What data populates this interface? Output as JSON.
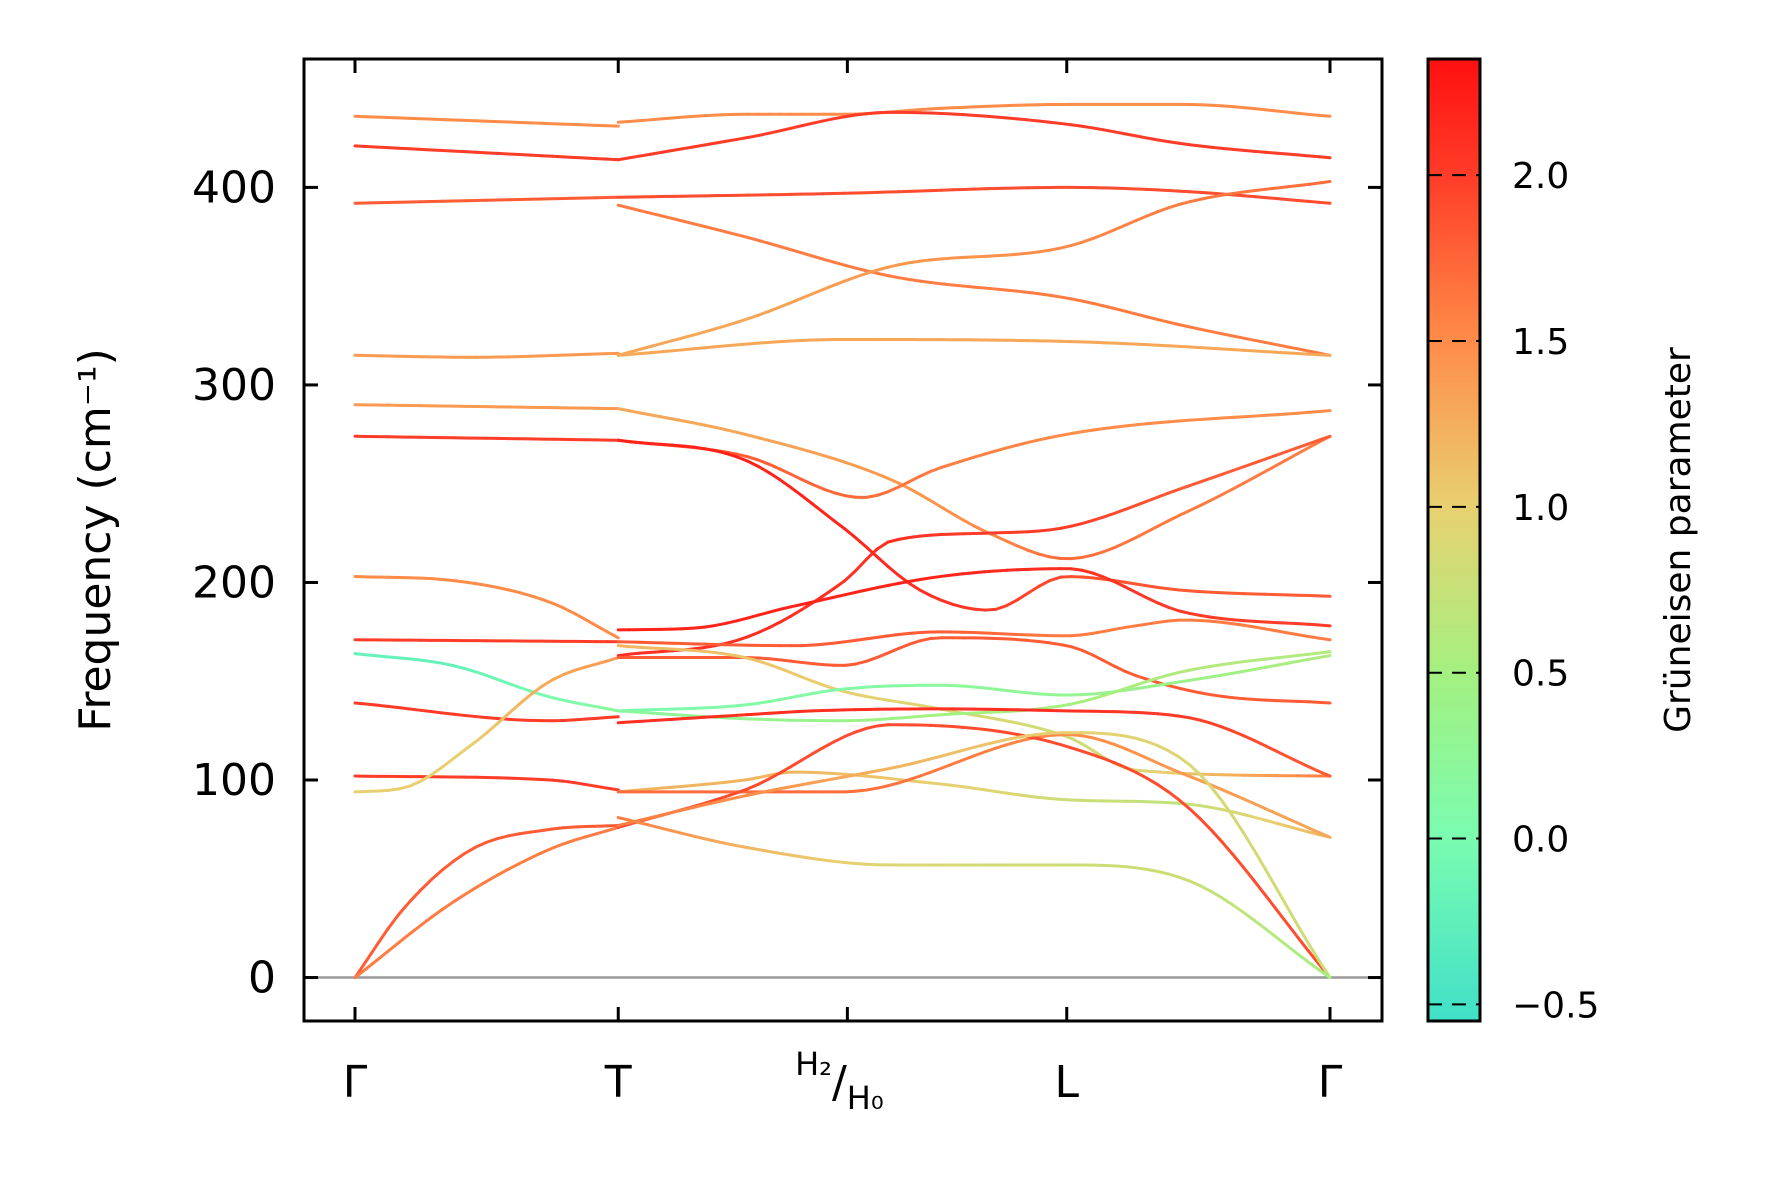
{
  "chart_data": {
    "type": "line",
    "title": "",
    "xlabel": "",
    "ylabel": "Frequency (cm⁻¹)",
    "ylim": [
      -22,
      465
    ],
    "yticks": [
      0,
      100,
      200,
      300,
      400
    ],
    "yticklabels": [
      "0",
      "100",
      "200",
      "300",
      "400"
    ],
    "kpath": [
      {
        "label": "Γ",
        "pos": 0.0
      },
      {
        "label": "T",
        "pos": 0.27
      },
      {
        "label": "H2/H0",
        "pos": 0.505,
        "sup": "H₂",
        "sub": "H₀"
      },
      {
        "label": "L",
        "pos": 0.73
      },
      {
        "label": "Γ",
        "pos": 1.0
      }
    ],
    "zero_line": 0,
    "colorbar": {
      "label": "Grüneisen parameter",
      "min": -0.55,
      "max": 2.35,
      "ticks": [
        -0.5,
        0.0,
        0.5,
        1.0,
        1.5,
        2.0
      ],
      "ticklabels": [
        "−0.5",
        "0.0",
        "0.5",
        "1.0",
        "1.5",
        "2.0"
      ],
      "stops": [
        {
          "v": -0.55,
          "c": "#40e0c8"
        },
        {
          "v": 0.0,
          "c": "#7afcb0"
        },
        {
          "v": 0.5,
          "c": "#a4f080"
        },
        {
          "v": 1.0,
          "c": "#e8d070"
        },
        {
          "v": 1.5,
          "c": "#ff8c48"
        },
        {
          "v": 2.0,
          "c": "#ff3c28"
        },
        {
          "v": 2.35,
          "c": "#ff1010"
        }
      ]
    },
    "series": [
      {
        "name": "b1",
        "x": [
          0,
          0.27
        ],
        "y": [
          436,
          431
        ],
        "g": [
          1.5,
          1.5
        ]
      },
      {
        "name": "b2",
        "x": [
          0,
          0.27
        ],
        "y": [
          421,
          414
        ],
        "g": [
          2.0,
          2.0
        ]
      },
      {
        "name": "b3",
        "x": [
          0,
          0.27
        ],
        "y": [
          392,
          395
        ],
        "g": [
          1.8,
          1.8
        ]
      },
      {
        "name": "b4",
        "x": [
          0,
          0.12,
          0.27
        ],
        "y": [
          315,
          314,
          316
        ],
        "g": [
          1.4,
          1.4,
          1.4
        ]
      },
      {
        "name": "b5",
        "x": [
          0,
          0.27
        ],
        "y": [
          290,
          288
        ],
        "g": [
          1.4,
          1.4
        ]
      },
      {
        "name": "b6",
        "x": [
          0,
          0.27
        ],
        "y": [
          274,
          272
        ],
        "g": [
          2.0,
          2.0
        ]
      },
      {
        "name": "b7",
        "x": [
          0,
          0.1,
          0.2,
          0.27
        ],
        "y": [
          203,
          201,
          190,
          172
        ],
        "g": [
          1.5,
          1.5,
          1.5,
          1.5
        ]
      },
      {
        "name": "b8",
        "x": [
          0,
          0.27
        ],
        "y": [
          171,
          170
        ],
        "g": [
          2.0,
          2.0
        ]
      },
      {
        "name": "b9",
        "x": [
          0,
          0.1,
          0.2,
          0.27
        ],
        "y": [
          164,
          158,
          142,
          135
        ],
        "g": [
          -0.2,
          -0.2,
          0.0,
          0.2
        ]
      },
      {
        "name": "b10",
        "x": [
          0,
          0.2,
          0.27
        ],
        "y": [
          139,
          130,
          132
        ],
        "g": [
          2.0,
          2.0,
          2.0
        ]
      },
      {
        "name": "b11",
        "x": [
          0,
          0.2,
          0.27
        ],
        "y": [
          102,
          100,
          95
        ],
        "g": [
          2.0,
          2.0,
          2.0
        ]
      },
      {
        "name": "b12",
        "x": [
          0,
          0.05,
          0.12,
          0.2,
          0.27
        ],
        "y": [
          94,
          96,
          118,
          150,
          162
        ],
        "g": [
          1.0,
          1.0,
          1.0,
          1.3,
          1.4
        ]
      },
      {
        "name": "b13",
        "x": [
          0,
          0.05,
          0.12,
          0.2,
          0.27
        ],
        "y": [
          0,
          35,
          65,
          75,
          77
        ],
        "g": [
          1.8,
          1.8,
          1.8,
          1.8,
          1.8
        ]
      },
      {
        "name": "b14",
        "x": [
          0,
          0.1,
          0.2,
          0.27
        ],
        "y": [
          0,
          38,
          65,
          76
        ],
        "g": [
          1.6,
          1.6,
          1.6,
          1.6
        ]
      },
      {
        "name": "b15",
        "x": [
          0.27,
          0.4,
          0.5,
          0.6,
          0.73,
          0.85,
          1.0
        ],
        "y": [
          433,
          437,
          437,
          440,
          442,
          442,
          436
        ],
        "g": [
          1.5,
          1.5,
          1.5,
          1.5,
          1.5,
          1.5,
          1.5
        ]
      },
      {
        "name": "b16",
        "x": [
          0.27,
          0.4,
          0.55,
          0.73,
          0.85,
          1.0
        ],
        "y": [
          414,
          425,
          438,
          432,
          422,
          415
        ],
        "g": [
          2.0,
          2.0,
          2.0,
          2.0,
          2.0,
          2.0
        ]
      },
      {
        "name": "b17",
        "x": [
          0.27,
          0.5,
          0.73,
          0.85,
          1.0
        ],
        "y": [
          395,
          397,
          400,
          398,
          392
        ],
        "g": [
          1.9,
          1.9,
          1.9,
          1.9,
          1.9
        ]
      },
      {
        "name": "b18",
        "x": [
          0.27,
          0.4,
          0.55,
          0.73,
          0.85,
          1.0
        ],
        "y": [
          391,
          375,
          355,
          344,
          330,
          315
        ],
        "g": [
          1.6,
          1.6,
          1.6,
          1.6,
          1.6,
          1.6
        ]
      },
      {
        "name": "b19",
        "x": [
          0.27,
          0.4,
          0.55,
          0.73,
          0.85,
          1.0
        ],
        "y": [
          315,
          333,
          360,
          370,
          392,
          403
        ],
        "g": [
          1.3,
          1.3,
          1.4,
          1.5,
          1.6,
          1.7
        ]
      },
      {
        "name": "b20",
        "x": [
          0.27,
          0.5,
          0.73,
          1.0
        ],
        "y": [
          315,
          323,
          322,
          315
        ],
        "g": [
          1.3,
          1.3,
          1.3,
          1.3
        ]
      },
      {
        "name": "b21",
        "x": [
          0.27,
          0.4,
          0.55,
          0.65,
          0.73,
          0.85,
          1.0
        ],
        "y": [
          288,
          275,
          252,
          225,
          212,
          235,
          274
        ],
        "g": [
          1.3,
          1.3,
          1.4,
          1.5,
          1.7,
          1.6,
          1.6
        ]
      },
      {
        "name": "b22",
        "x": [
          0.27,
          0.4,
          0.52,
          0.6,
          0.73,
          1.0
        ],
        "y": [
          272,
          264,
          243,
          258,
          275,
          287
        ],
        "g": [
          1.8,
          1.8,
          1.7,
          1.6,
          1.5,
          1.5
        ]
      },
      {
        "name": "b23",
        "x": [
          0.27,
          0.4,
          0.5,
          0.58,
          0.65,
          0.73,
          0.85,
          1.0
        ],
        "y": [
          272,
          262,
          228,
          196,
          186,
          203,
          196,
          193
        ],
        "g": [
          2.2,
          2.2,
          2.2,
          2.1,
          2.0,
          1.9,
          1.8,
          1.8
        ]
      },
      {
        "name": "b24",
        "x": [
          0.27,
          0.4,
          0.5,
          0.55,
          0.65,
          0.73,
          0.85,
          1.0
        ],
        "y": [
          163,
          172,
          200,
          221,
          225,
          228,
          248,
          274
        ],
        "g": [
          2.1,
          2.1,
          2.1,
          2.1,
          2.0,
          2.0,
          1.8,
          1.8
        ]
      },
      {
        "name": "b25",
        "x": [
          0.27,
          0.35,
          0.45,
          0.6,
          0.73,
          0.85,
          1.0
        ],
        "y": [
          176,
          177,
          188,
          203,
          207,
          185,
          178
        ],
        "g": [
          2.2,
          2.2,
          2.2,
          2.2,
          2.1,
          2.0,
          2.0
        ]
      },
      {
        "name": "b26",
        "x": [
          0.27,
          0.45,
          0.6,
          0.73,
          0.8,
          0.85,
          1.0
        ],
        "y": [
          170,
          168,
          175,
          173,
          178,
          181,
          171
        ],
        "g": [
          1.8,
          1.8,
          1.8,
          1.6,
          1.6,
          1.6,
          1.6
        ]
      },
      {
        "name": "b27",
        "x": [
          0.27,
          0.4,
          0.5,
          0.6,
          0.73,
          0.8,
          0.88,
          1.0
        ],
        "y": [
          162,
          162,
          158,
          172,
          168,
          153,
          143,
          139
        ],
        "g": [
          1.8,
          1.8,
          1.8,
          1.8,
          1.8,
          1.8,
          1.8,
          1.8
        ]
      },
      {
        "name": "b28",
        "x": [
          0.27,
          0.4,
          0.5,
          0.6,
          0.73,
          0.8,
          1.0
        ],
        "y": [
          168,
          162,
          145,
          136,
          122,
          105,
          102
        ],
        "g": [
          1.2,
          1.1,
          1.0,
          0.9,
          0.8,
          0.9,
          1.6
        ]
      },
      {
        "name": "b29",
        "x": [
          0.27,
          0.4,
          0.5,
          0.6,
          0.73,
          0.85,
          1.0
        ],
        "y": [
          135,
          138,
          146,
          148,
          143,
          150,
          163
        ],
        "g": [
          0.0,
          0.1,
          0.1,
          0.2,
          0.3,
          0.4,
          0.6
        ]
      },
      {
        "name": "b30",
        "x": [
          0.27,
          0.4,
          0.5,
          0.6,
          0.73,
          0.85,
          1.0
        ],
        "y": [
          135,
          131,
          130,
          133,
          138,
          155,
          165
        ],
        "g": [
          0.2,
          0.3,
          0.4,
          0.5,
          0.5,
          0.6,
          0.6
        ]
      },
      {
        "name": "b31",
        "x": [
          0.27,
          0.4,
          0.47,
          0.6,
          0.73,
          0.85,
          1.0
        ],
        "y": [
          129,
          133,
          135,
          136,
          135,
          132,
          102
        ],
        "g": [
          2.1,
          2.1,
          2.1,
          2.1,
          2.1,
          2.0,
          1.8
        ]
      },
      {
        "name": "b32",
        "x": [
          0.27,
          0.4,
          0.45,
          0.6,
          0.73,
          0.85,
          1.0
        ],
        "y": [
          94,
          100,
          104,
          98,
          90,
          88,
          71
        ],
        "g": [
          1.2,
          1.2,
          1.2,
          1.0,
          0.8,
          0.7,
          1.2
        ]
      },
      {
        "name": "b33",
        "x": [
          0.27,
          0.5,
          0.73,
          0.85,
          1.0
        ],
        "y": [
          94,
          94,
          123,
          103,
          71
        ],
        "g": [
          1.7,
          1.7,
          1.5,
          1.4,
          1.3
        ]
      },
      {
        "name": "b34",
        "x": [
          0.27,
          0.4,
          0.55,
          0.73,
          0.85,
          1.0
        ],
        "y": [
          76,
          95,
          128,
          117,
          88,
          0
        ],
        "g": [
          1.9,
          1.9,
          1.9,
          1.9,
          1.9,
          1.9
        ]
      },
      {
        "name": "b35",
        "x": [
          0.27,
          0.4,
          0.55,
          0.73,
          0.85,
          1.0
        ],
        "y": [
          77,
          92,
          106,
          124,
          110,
          0
        ],
        "g": [
          1.6,
          1.5,
          1.2,
          1.0,
          0.9,
          0.8
        ]
      },
      {
        "name": "b36",
        "x": [
          0.27,
          0.4,
          0.55,
          0.73,
          0.85,
          1.0
        ],
        "y": [
          81,
          66,
          57,
          57,
          50,
          0
        ],
        "g": [
          1.6,
          1.2,
          0.9,
          0.8,
          0.8,
          0.5
        ]
      }
    ]
  }
}
